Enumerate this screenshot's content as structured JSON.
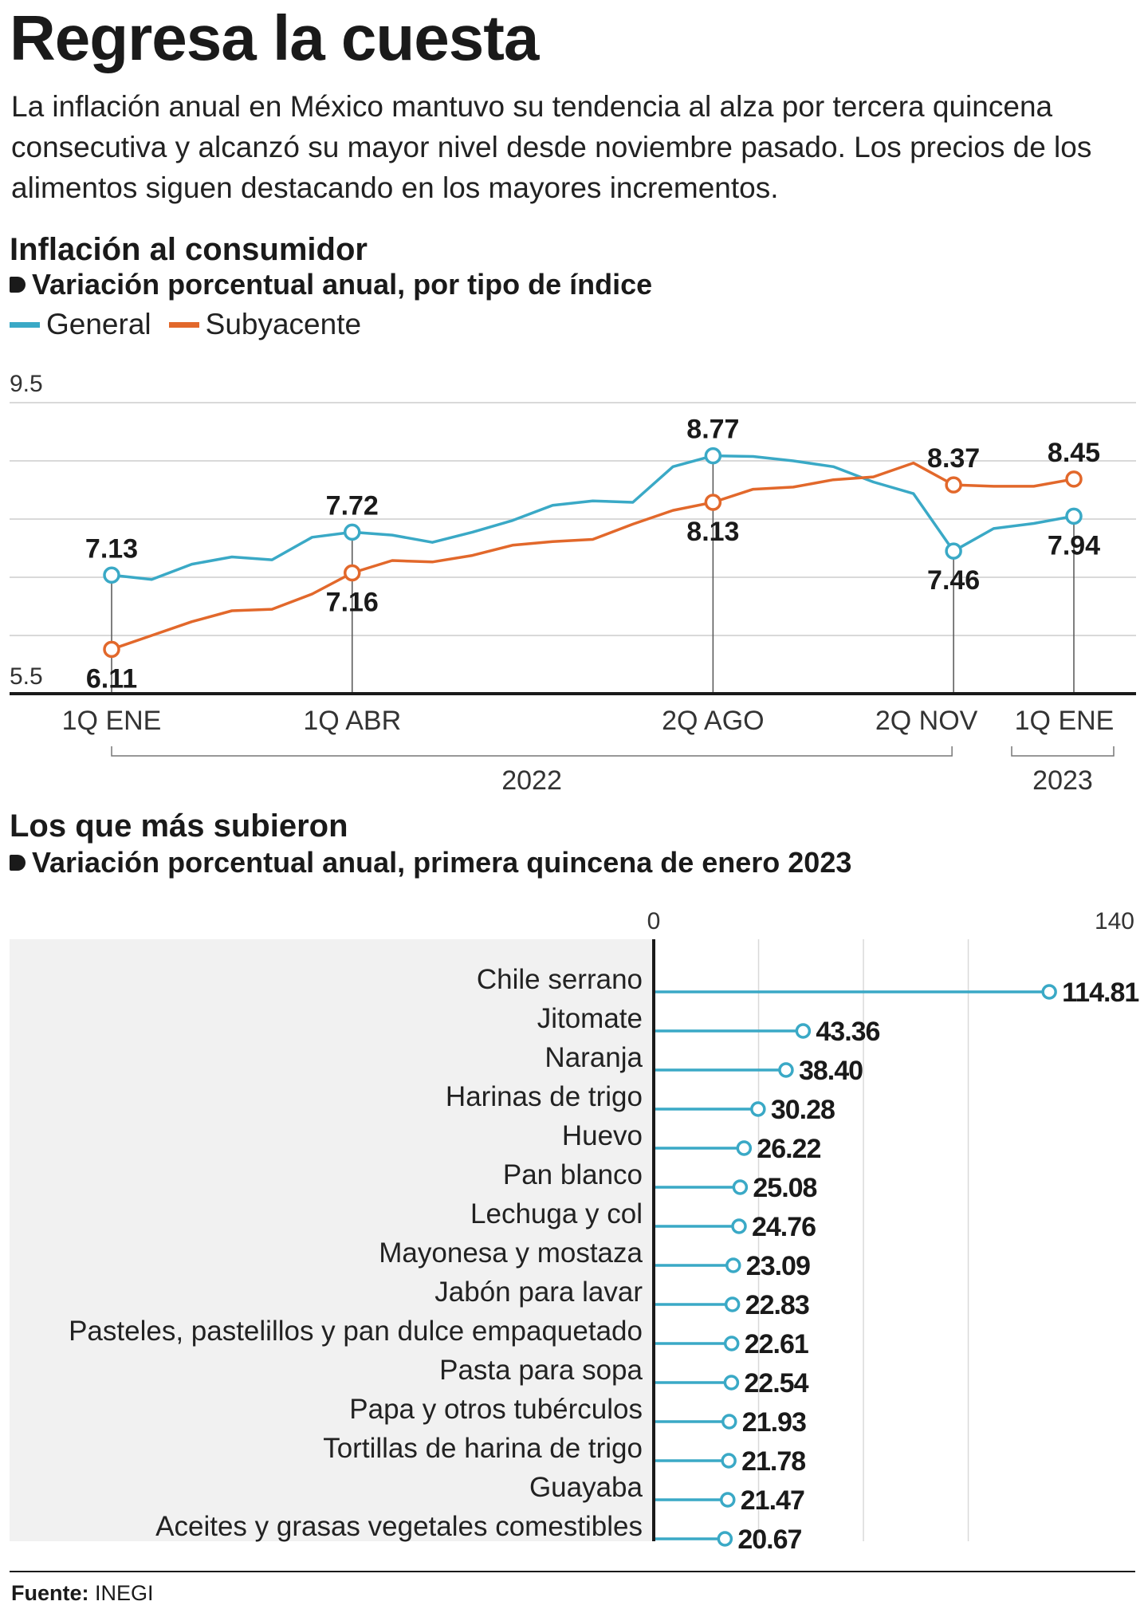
{
  "title": "Regresa la cuesta",
  "intro": "La inflación anual en México mantuvo su tendencia al alza por tercera quincena consecutiva y alcanzó su mayor nivel desde noviembre pasado. Los precios de los alimentos siguen destacando en los mayores incrementos.",
  "line_section": {
    "title": "Inflación al consumidor",
    "subtitle": "Variación porcentual anual, por tipo de índice"
  },
  "bar_section": {
    "title": "Los que más subieron",
    "subtitle": "Variación porcentual anual, primera quincena de enero 2023"
  },
  "source": {
    "label": "Fuente:",
    "value": "INEGI"
  },
  "colors": {
    "general": "#3aa9c6",
    "subyacente": "#e2682b",
    "text": "#1a1a1a",
    "grid": "#d9d9d9",
    "panel": "#f1f1f1"
  },
  "chart_data": [
    {
      "type": "line",
      "title": "Inflación al consumidor",
      "subtitle": "Variación porcentual anual, por tipo de índice",
      "ylim": [
        5.5,
        9.5
      ],
      "yticks": [
        "9.5",
        "5.5"
      ],
      "grid": true,
      "legend_position": "top-left",
      "x": [
        "1Q ENE 2022",
        "2Q ENE 2022",
        "1Q FEB 2022",
        "2Q FEB 2022",
        "1Q MAR 2022",
        "2Q MAR 2022",
        "1Q ABR 2022",
        "2Q ABR 2022",
        "1Q MAY 2022",
        "2Q MAY 2022",
        "1Q JUN 2022",
        "2Q JUN 2022",
        "1Q JUL 2022",
        "2Q JUL 2022",
        "1Q AGO 2022",
        "2Q AGO 2022",
        "1Q SEP 2022",
        "2Q SEP 2022",
        "1Q OCT 2022",
        "2Q OCT 2022",
        "1Q NOV 2022",
        "2Q NOV 2022",
        "1Q DIC 2022",
        "2Q DIC 2022",
        "1Q ENE 2023"
      ],
      "xtick_labels": [
        {
          "label": "1Q ENE",
          "index": 0
        },
        {
          "label": "1Q ABR",
          "index": 6
        },
        {
          "label": "2Q AGO",
          "index": 15
        },
        {
          "label": "2Q NOV",
          "index": 21
        },
        {
          "label": "1Q ENE",
          "index": 24
        }
      ],
      "year_labels": [
        "2022",
        "2023"
      ],
      "series": [
        {
          "name": "General",
          "color": "#3aa9c6",
          "values": [
            7.13,
            7.07,
            7.28,
            7.38,
            7.34,
            7.65,
            7.72,
            7.68,
            7.58,
            7.72,
            7.88,
            8.09,
            8.15,
            8.13,
            8.62,
            8.77,
            8.76,
            8.7,
            8.62,
            8.41,
            8.25,
            7.46,
            7.77,
            7.84,
            7.94
          ]
        },
        {
          "name": "Subyacente",
          "color": "#e2682b",
          "values": [
            6.11,
            6.3,
            6.49,
            6.64,
            6.66,
            6.87,
            7.16,
            7.33,
            7.31,
            7.4,
            7.54,
            7.59,
            7.62,
            7.83,
            8.02,
            8.13,
            8.31,
            8.34,
            8.44,
            8.48,
            8.67,
            8.37,
            8.35,
            8.35,
            8.45
          ]
        }
      ],
      "annotations": [
        {
          "series": "General",
          "index": 0,
          "label": "7.13",
          "pos": "above"
        },
        {
          "series": "General",
          "index": 6,
          "label": "7.72",
          "pos": "above"
        },
        {
          "series": "General",
          "index": 15,
          "label": "8.77",
          "pos": "above"
        },
        {
          "series": "General",
          "index": 21,
          "label": "7.46",
          "pos": "below"
        },
        {
          "series": "General",
          "index": 24,
          "label": "7.94",
          "pos": "below"
        },
        {
          "series": "Subyacente",
          "index": 0,
          "label": "6.11",
          "pos": "below"
        },
        {
          "series": "Subyacente",
          "index": 6,
          "label": "7.16",
          "pos": "below"
        },
        {
          "series": "Subyacente",
          "index": 15,
          "label": "8.13",
          "pos": "below"
        },
        {
          "series": "Subyacente",
          "index": 21,
          "label": "8.37",
          "pos": "above"
        },
        {
          "series": "Subyacente",
          "index": 24,
          "label": "8.45",
          "pos": "above"
        }
      ]
    },
    {
      "type": "bar",
      "style": "lollipop",
      "title": "Los que más subieron",
      "subtitle": "Variación porcentual anual, primera quincena de enero 2023",
      "xlim": [
        0,
        140
      ],
      "xticks": [
        "0",
        "140"
      ],
      "color": "#3aa9c6",
      "categories": [
        "Chile serrano",
        "Jitomate",
        "Naranja",
        "Harinas de trigo",
        "Huevo",
        "Pan blanco",
        "Lechuga y col",
        "Mayonesa y mostaza",
        "Jabón para lavar",
        "Pasteles, pastelillos y pan dulce empaquetado",
        "Pasta para sopa",
        "Papa y otros tubérculos",
        "Tortillas de harina de trigo",
        "Guayaba",
        "Aceites y grasas vegetales comestibles"
      ],
      "values": [
        114.81,
        43.36,
        38.4,
        30.28,
        26.22,
        25.08,
        24.76,
        23.09,
        22.83,
        22.61,
        22.54,
        21.93,
        21.78,
        21.47,
        20.67
      ],
      "labels": [
        "114.81",
        "43.36",
        "38.40",
        "30.28",
        "26.22",
        "25.08",
        "24.76",
        "23.09",
        "22.83",
        "22.61",
        "22.54",
        "21.93",
        "21.78",
        "21.47",
        "20.67"
      ]
    }
  ]
}
